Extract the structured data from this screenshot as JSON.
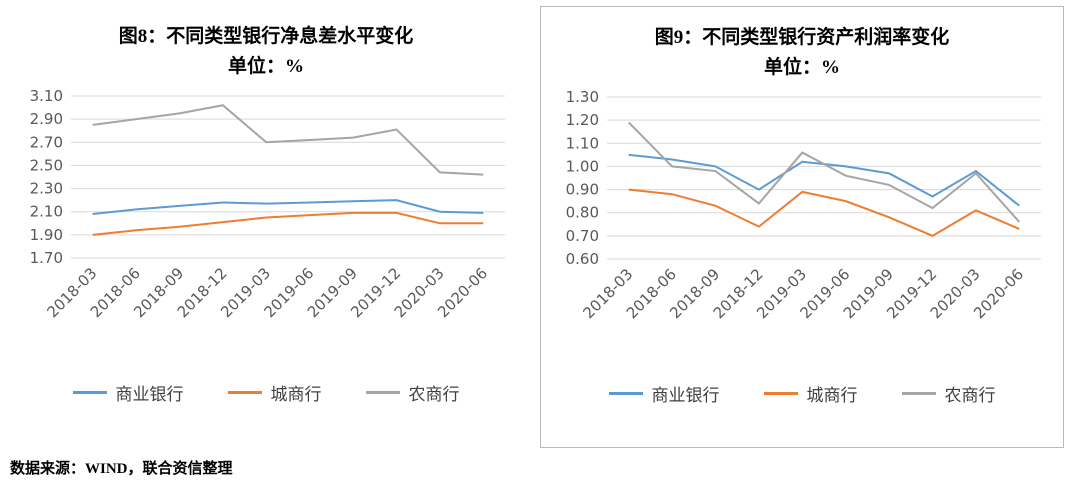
{
  "page": {
    "source_note": "数据来源：WIND，联合资信整理"
  },
  "charts": [
    {
      "title_line1": "图8：不同类型银行净息差水平变化",
      "title_line2": "单位：%"
    },
    {
      "title_line1": "图9：不同类型银行资产利润率变化",
      "title_line2": "单位：%"
    }
  ],
  "chart_data": [
    {
      "type": "line",
      "title": "图8：不同类型银行净息差水平变化 单位：%",
      "categories": [
        "2018-03",
        "2018-06",
        "2018-09",
        "2018-12",
        "2019-03",
        "2019-06",
        "2019-09",
        "2019-12",
        "2020-03",
        "2020-06"
      ],
      "series": [
        {
          "name": "商业银行",
          "color": "#5B9BD5",
          "values": [
            2.08,
            2.12,
            2.15,
            2.18,
            2.17,
            2.18,
            2.19,
            2.2,
            2.1,
            2.09
          ]
        },
        {
          "name": "城商行",
          "color": "#ED7D31",
          "values": [
            1.9,
            1.94,
            1.97,
            2.01,
            2.05,
            2.07,
            2.09,
            2.09,
            2.0,
            2.0
          ]
        },
        {
          "name": "农商行",
          "color": "#A5A5A5",
          "values": [
            2.85,
            2.9,
            2.95,
            3.02,
            2.7,
            2.72,
            2.74,
            2.81,
            2.44,
            2.42
          ]
        }
      ],
      "ylim": [
        1.7,
        3.1
      ],
      "ytick_step": 0.2,
      "ytick_decimals": 2,
      "grid": true,
      "gridline_color": "#d9d9d9",
      "legend_position": "bottom"
    },
    {
      "type": "line",
      "title": "图9：不同类型银行资产利润率变化 单位：%",
      "categories": [
        "2018-03",
        "2018-06",
        "2018-09",
        "2018-12",
        "2019-03",
        "2019-06",
        "2019-09",
        "2019-12",
        "2020-03",
        "2020-06"
      ],
      "series": [
        {
          "name": "商业银行",
          "color": "#5B9BD5",
          "values": [
            1.05,
            1.03,
            1.0,
            0.9,
            1.02,
            1.0,
            0.97,
            0.87,
            0.98,
            0.83
          ]
        },
        {
          "name": "城商行",
          "color": "#ED7D31",
          "values": [
            0.9,
            0.88,
            0.83,
            0.74,
            0.89,
            0.85,
            0.78,
            0.7,
            0.81,
            0.73
          ]
        },
        {
          "name": "农商行",
          "color": "#A5A5A5",
          "values": [
            1.19,
            1.0,
            0.98,
            0.84,
            1.06,
            0.96,
            0.92,
            0.82,
            0.97,
            0.76
          ]
        }
      ],
      "ylim": [
        0.6,
        1.3
      ],
      "ytick_step": 0.1,
      "ytick_decimals": 2,
      "grid": true,
      "gridline_color": "#d9d9d9",
      "legend_position": "bottom"
    }
  ]
}
